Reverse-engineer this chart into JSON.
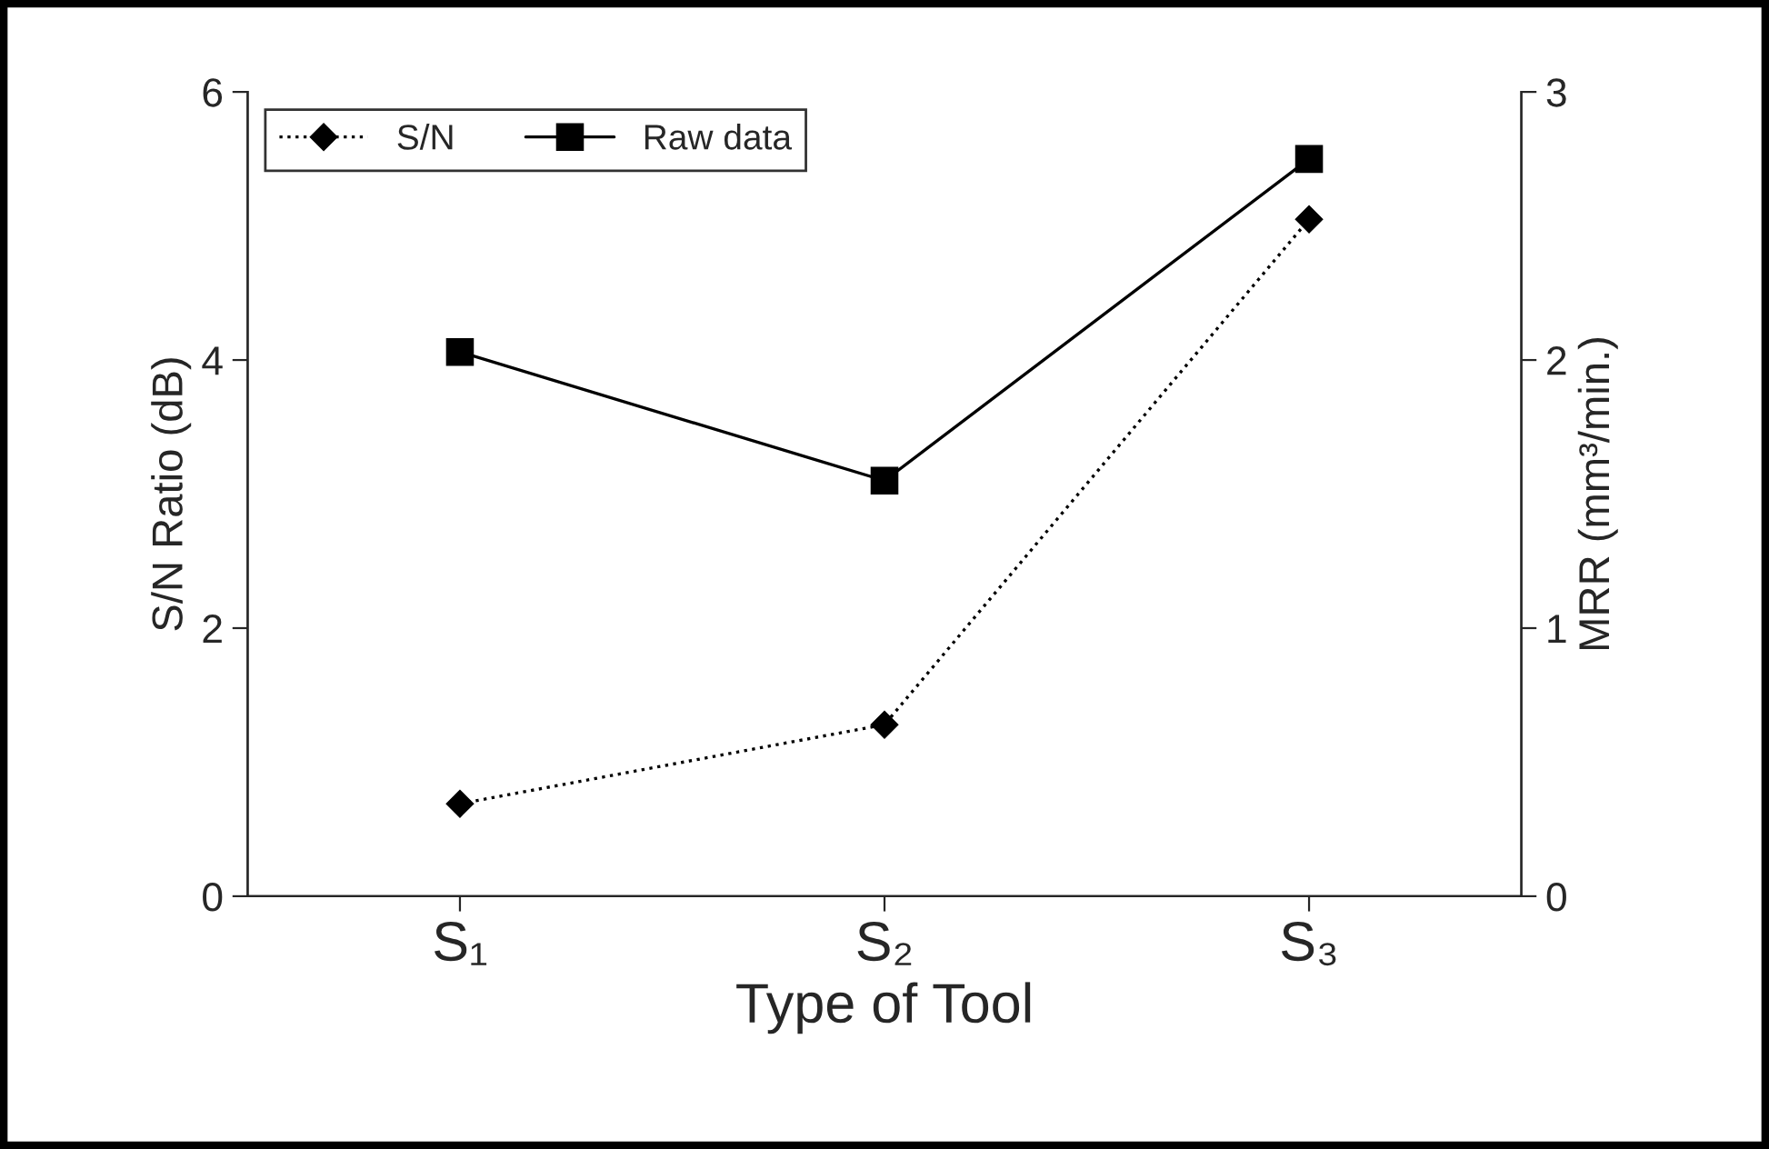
{
  "chart_data": {
    "type": "line",
    "xlabel": "Type of Tool",
    "ylabel": "S/N Ratio (dB)",
    "y2label": "MRR (mm³/min.)",
    "categories": [
      "S₁",
      "S₂",
      "S₃"
    ],
    "series": [
      {
        "name": "S/N",
        "color": "#000000",
        "values": [
          0.69,
          1.28,
          5.05
        ],
        "marker": "diamond",
        "line_style": "dotted"
      },
      {
        "name": "Raw data",
        "color": "#000000",
        "values": [
          2.03,
          1.55,
          2.75
        ],
        "marker": "square",
        "line_style": "solid",
        "axis": "y2"
      }
    ],
    "ylim": [
      0,
      6
    ],
    "yticks": [
      0,
      2,
      4,
      6
    ],
    "y2lim": [
      0,
      3
    ],
    "y2ticks": [
      0,
      1,
      2,
      3
    ],
    "grid": false,
    "legend": "top left"
  }
}
